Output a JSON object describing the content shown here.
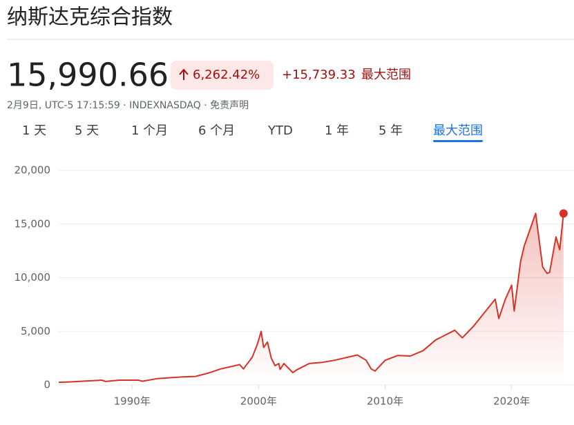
{
  "header": {
    "title": "纳斯达克综合指数",
    "price": "15,990.66",
    "change_percent": "6,262.42%",
    "change": "+15,739.33",
    "range_label": "最大范围",
    "timestamp": "2月9日, UTC-5 17:15:59 · INDEXNASDAQ · 免责声明"
  },
  "tabs": {
    "items": [
      "1 天",
      "5 天",
      "1 个月",
      "6 个月",
      "YTD",
      "1 年",
      "5 年",
      "最大范围"
    ],
    "selected": 7
  },
  "chart_data": {
    "type": "line",
    "x": [
      1984.2,
      1985,
      1986,
      1987.6,
      1987.9,
      1989,
      1990.5,
      1990.8,
      1992,
      1994,
      1995,
      1996,
      1997,
      1998.5,
      1998.8,
      1999.5,
      1999.9,
      2000.2,
      2000.4,
      2000.7,
      2001,
      2001.3,
      2001.6,
      2001.7,
      2002,
      2002.7,
      2003,
      2004,
      2005,
      2006,
      2007.8,
      2008.5,
      2008.9,
      2009.2,
      2010,
      2011,
      2012,
      2013,
      2014,
      2015.5,
      2016.1,
      2017,
      2018.7,
      2018.98,
      2019.5,
      2020,
      2020.2,
      2020.7,
      2021,
      2021.9,
      2022.45,
      2022.8,
      2023,
      2023.5,
      2023.8,
      2024.1
    ],
    "series": [
      {
        "color": "#d93025",
        "values": [
          250,
          280,
          350,
          450,
          330,
          450,
          450,
          350,
          600,
          750,
          800,
          1100,
          1500,
          1900,
          1500,
          2600,
          3800,
          5000,
          3500,
          4000,
          2500,
          1800,
          2000,
          1450,
          2000,
          1150,
          1400,
          2000,
          2100,
          2300,
          2800,
          2300,
          1500,
          1300,
          2300,
          2750,
          2700,
          3200,
          4200,
          5100,
          4400,
          5500,
          8000,
          6200,
          8000,
          9300,
          6900,
          11500,
          13000,
          16000,
          11000,
          10400,
          10500,
          13800,
          12600,
          15990.66
        ]
      }
    ],
    "xlim": [
      1984.2,
      2024.6
    ],
    "xticks": [
      {
        "value": 1990,
        "label": "1990年"
      },
      {
        "value": 2000,
        "label": "2000年"
      },
      {
        "value": 2010,
        "label": "2010年"
      },
      {
        "value": 2020,
        "label": "2020年"
      }
    ],
    "ylim": [
      0,
      20000
    ],
    "yticks": [
      0,
      {
        "value": 5000,
        "label": "5,000"
      },
      {
        "value": 10000,
        "label": "10,000"
      },
      {
        "value": 15000,
        "label": "15,000"
      },
      {
        "value": 20000,
        "label": "20,000"
      }
    ],
    "grid": true
  }
}
